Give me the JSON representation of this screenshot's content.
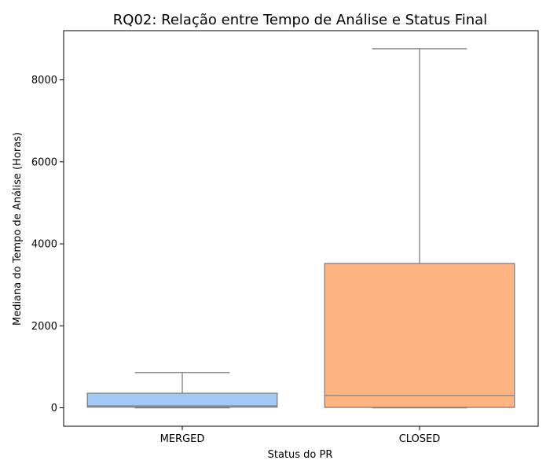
{
  "chart_data": {
    "type": "box",
    "title": "RQ02: Relação entre Tempo de Análise e Status Final",
    "xlabel": "Status do PR",
    "ylabel": "Mediana do Tempo de Análise (Horas)",
    "ylim": [
      -450,
      9200
    ],
    "yticks": [
      0,
      2000,
      4000,
      6000,
      8000
    ],
    "grid": false,
    "categories": [
      "MERGED",
      "CLOSED"
    ],
    "boxes": [
      {
        "category": "MERGED",
        "color": "#a1c9f4",
        "whisker_low": 0,
        "q1": 15,
        "median": 45,
        "q3": 355,
        "whisker_high": 860
      },
      {
        "category": "CLOSED",
        "color": "#ffb482",
        "whisker_low": 0,
        "q1": 10,
        "median": 300,
        "q3": 3520,
        "whisker_high": 8760
      }
    ],
    "line_color": "#7f7f7f"
  }
}
